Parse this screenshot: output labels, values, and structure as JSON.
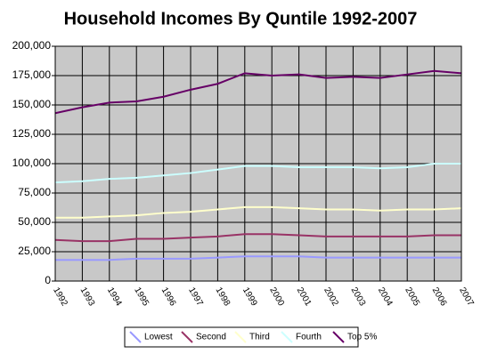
{
  "chart_data": {
    "type": "line",
    "title": "Household Incomes By Quntile 1992-2007",
    "categories": [
      "1992",
      "1993",
      "1994",
      "1995",
      "1996",
      "1997",
      "1998",
      "1999",
      "2000",
      "2001",
      "2002",
      "2003",
      "2004",
      "2005",
      "2006",
      "2007"
    ],
    "series": [
      {
        "name": "Lowest",
        "color": "#9999ff",
        "values": [
          18000,
          18000,
          18000,
          19000,
          19000,
          19000,
          20000,
          21000,
          21000,
          21000,
          20000,
          20000,
          20000,
          20000,
          20000,
          20000
        ]
      },
      {
        "name": "Second",
        "color": "#993366",
        "values": [
          35000,
          34000,
          34000,
          36000,
          36000,
          37000,
          38000,
          40000,
          40000,
          39000,
          38000,
          38000,
          38000,
          38000,
          39000,
          39000
        ]
      },
      {
        "name": "Third",
        "color": "#ffffcc",
        "values": [
          54000,
          54000,
          55000,
          56000,
          58000,
          59000,
          61000,
          63000,
          63000,
          62000,
          61000,
          61000,
          60000,
          61000,
          61000,
          62000
        ]
      },
      {
        "name": "Fourth",
        "color": "#ccffff",
        "values": [
          84000,
          85000,
          87000,
          88000,
          90000,
          92000,
          95000,
          98000,
          98000,
          97000,
          97000,
          97000,
          96000,
          97000,
          100000,
          100000
        ]
      },
      {
        "name": "Top 5%",
        "color": "#660066",
        "values": [
          143000,
          148000,
          152000,
          153000,
          157000,
          163000,
          168000,
          177000,
          175000,
          176000,
          173000,
          174000,
          173000,
          176000,
          179000,
          177000
        ]
      }
    ],
    "ylim": [
      0,
      200000
    ],
    "yticks": [
      0,
      {
        "value": 25000,
        "label": "25,000"
      },
      {
        "value": 50000,
        "label": "50,000"
      },
      {
        "value": 75000,
        "label": "75,000"
      },
      {
        "value": 100000,
        "label": "100,000"
      },
      {
        "value": 125000,
        "label": "125,000"
      },
      {
        "value": 150000,
        "label": "150,000"
      },
      {
        "value": 175000,
        "label": "175,000"
      },
      {
        "value": 200000,
        "label": "200,000"
      }
    ],
    "grid": true,
    "legend": "bottom"
  }
}
